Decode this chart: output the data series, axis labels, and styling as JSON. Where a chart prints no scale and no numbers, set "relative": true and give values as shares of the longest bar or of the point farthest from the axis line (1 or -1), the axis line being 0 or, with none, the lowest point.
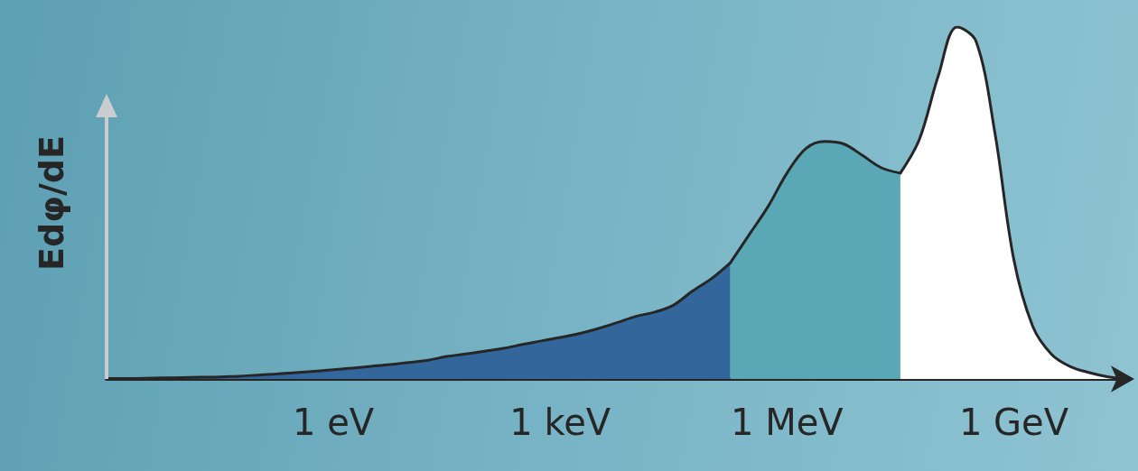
{
  "chart_data": {
    "type": "area",
    "ylabel": "Edφ/dE",
    "relative": true,
    "grid": false,
    "categories": [
      null,
      null,
      null,
      null,
      null,
      null,
      null,
      null,
      null,
      null,
      null,
      null,
      "1 eV",
      null,
      null,
      null,
      null,
      null,
      null,
      null,
      null,
      null,
      null,
      null,
      "1 keV",
      null,
      null,
      null,
      null,
      null,
      null,
      null,
      null,
      null,
      null,
      null,
      "1 MeV",
      null,
      null,
      null,
      null,
      null,
      null,
      null,
      null,
      null,
      null,
      null,
      "1 GeV",
      null,
      null,
      null,
      null,
      null,
      null
    ],
    "series": [
      {
        "color": "#33679b",
        "values": [
          0,
          0.001,
          0.002,
          0.003,
          0.004,
          0.005,
          0.006,
          0.008,
          0.011,
          0.014,
          0.018,
          0.022,
          0.026,
          0.031,
          0.036,
          0.041,
          0.047,
          0.053,
          0.064,
          0.071,
          0.079,
          0.087,
          0.098,
          0.108,
          0.118,
          0.129,
          0.143,
          0.16,
          0.178,
          0.19,
          0.21,
          0.25,
          0.285,
          0.33,
          null,
          null,
          null,
          null,
          null,
          null,
          null,
          null,
          null,
          null,
          null,
          null,
          null,
          null,
          null,
          null,
          null,
          null,
          null,
          null,
          null
        ]
      },
      {
        "color": "#5aa8b5",
        "values": [
          null,
          null,
          null,
          null,
          null,
          null,
          null,
          null,
          null,
          null,
          null,
          null,
          null,
          null,
          null,
          null,
          null,
          null,
          null,
          null,
          null,
          null,
          null,
          null,
          null,
          null,
          null,
          null,
          null,
          null,
          null,
          null,
          null,
          0.33,
          0.41,
          0.49,
          0.585,
          0.655,
          0.675,
          0.668,
          0.635,
          0.6,
          0.585,
          null,
          null,
          null,
          null,
          null,
          null,
          null,
          null,
          null,
          null,
          null,
          null
        ]
      },
      {
        "color": "#ffffff",
        "values": [
          null,
          null,
          null,
          null,
          null,
          null,
          null,
          null,
          null,
          null,
          null,
          null,
          null,
          null,
          null,
          null,
          null,
          null,
          null,
          null,
          null,
          null,
          null,
          null,
          null,
          null,
          null,
          null,
          null,
          null,
          null,
          null,
          null,
          null,
          null,
          null,
          null,
          null,
          null,
          null,
          null,
          null,
          0.585,
          0.68,
          0.86,
          1,
          0.96,
          0.7,
          0.34,
          0.15,
          0.07,
          0.035,
          0.018,
          0.006,
          0
        ]
      }
    ]
  }
}
